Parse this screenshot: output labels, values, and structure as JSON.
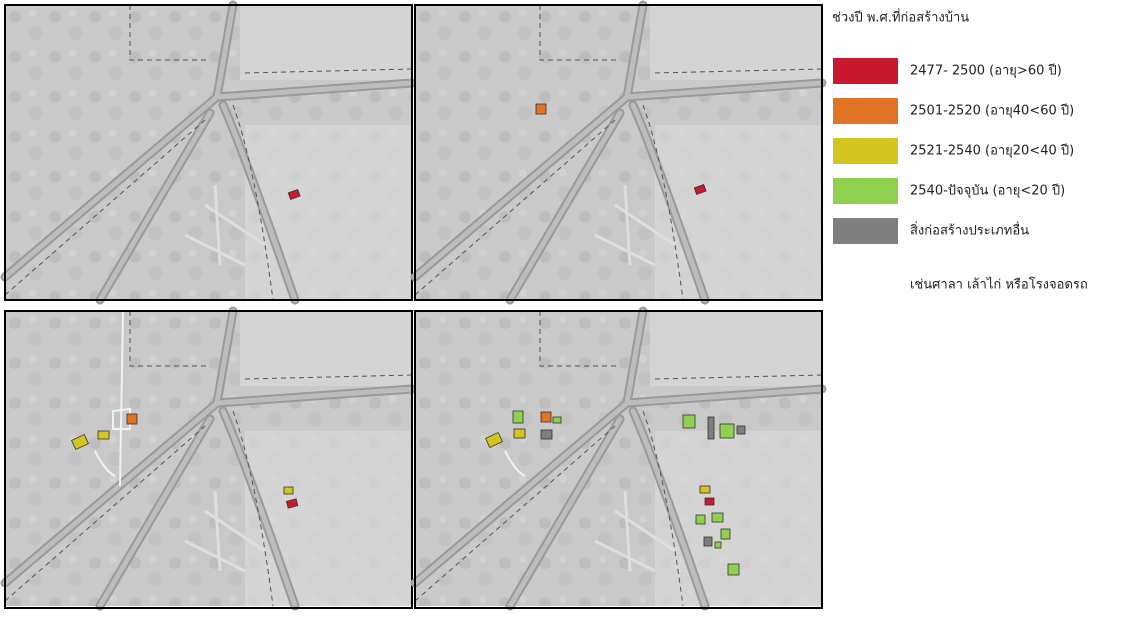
{
  "legend": {
    "title": "ช่วงปี พ.ศ.ที่ก่อสร้างบ้าน",
    "items": [
      {
        "label": "2477- 2500 (อายุ>60 ปี)",
        "color": "#c8192e"
      },
      {
        "label": "2501-2520 (อายุ40<60 ปี)",
        "color": "#e07325"
      },
      {
        "label": "2521-2540 (อายุ20<40 ปี)",
        "color": "#d4c420"
      },
      {
        "label": "2540-ปัจจุบัน (อายุ<20 ปี)",
        "color": "#8fd14f"
      },
      {
        "label": "สิ่งก่อสร้างประเภทอื่น",
        "color": "#7f7f7f"
      }
    ],
    "note": "เช่นศาลา เล้าไก่ หรือโรงจอดรถ"
  }
}
